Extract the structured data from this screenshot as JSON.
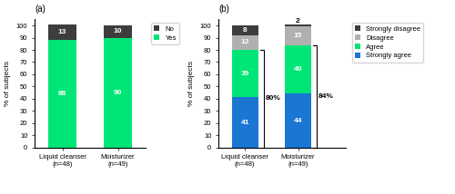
{
  "chart_data": [
    {
      "type": "bar",
      "stacked": true,
      "title": "(a)",
      "ylabel": "% of subjects",
      "categories": [
        "Liquid cleanser\n(n=48)",
        "Moisturizer\n(n=49)"
      ],
      "series": [
        {
          "name": "Yes",
          "color": "#00e676",
          "values": [
            88,
            90
          ]
        },
        {
          "name": "No",
          "color": "#3d3d3d",
          "values": [
            13,
            10
          ]
        }
      ],
      "ylim": [
        0,
        105
      ],
      "yticks": [
        0,
        10,
        20,
        30,
        40,
        50,
        60,
        70,
        80,
        90,
        100
      ],
      "data_labels": true,
      "legend": "upper left"
    },
    {
      "type": "bar",
      "stacked": true,
      "title": "(b)",
      "ylabel": "% of subjects",
      "categories": [
        "Liquid cleanser\n(n=48)",
        "Moisturizer\n(n=49)"
      ],
      "series": [
        {
          "name": "Strongly agree",
          "color": "#1976d2",
          "values": [
            41,
            44
          ]
        },
        {
          "name": "Agree",
          "color": "#00e676",
          "values": [
            39,
            40
          ]
        },
        {
          "name": "Disagree",
          "color": "#b0b0b0",
          "values": [
            12,
            15
          ]
        },
        {
          "name": "Strongly disagree",
          "color": "#3d3d3d",
          "values": [
            8,
            2
          ]
        }
      ],
      "ylim": [
        0,
        105
      ],
      "yticks": [
        0,
        10,
        20,
        30,
        40,
        50,
        60,
        70,
        80,
        90,
        100
      ],
      "data_labels": true,
      "legend": "upper left",
      "annotations": [
        {
          "text": "80%",
          "category": "Liquid cleanser\n(n=48)",
          "y_from": 0,
          "y_to": 80
        },
        {
          "text": "84%",
          "category": "Moisturizer\n(n=49)",
          "y_from": 0,
          "y_to": 84
        }
      ]
    }
  ]
}
